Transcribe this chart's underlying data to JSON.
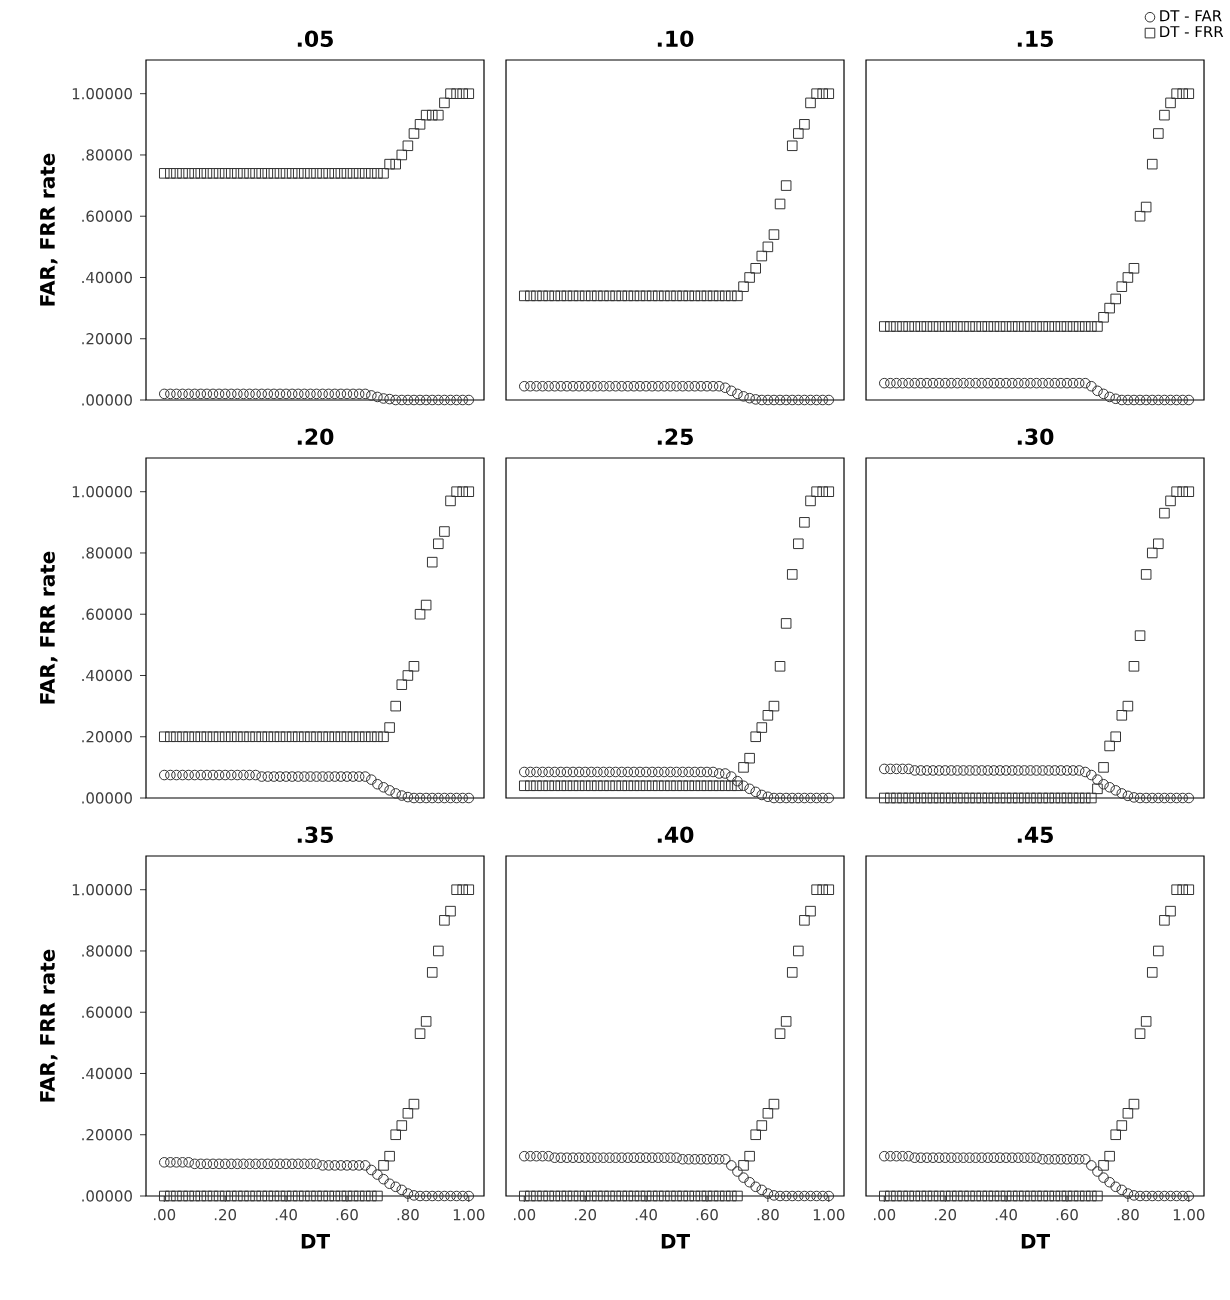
{
  "chart_data": [
    {
      "type": "scatter",
      "title": ".05",
      "ylabel": "FAR, FRR rate",
      "tick_labels": "y",
      "xlim": [
        -0.06,
        1.05
      ],
      "ylim": [
        0,
        1.11
      ],
      "xticks": [
        {
          "value": 0,
          "label": null
        },
        {
          "value": 0.2,
          "label": null
        },
        {
          "value": 0.4,
          "label": null
        },
        {
          "value": 0.6,
          "label": null
        },
        {
          "value": 0.8,
          "label": null
        },
        {
          "value": 1,
          "label": null
        }
      ],
      "yticks": [
        {
          "value": 0,
          "label": ".00000"
        },
        {
          "value": 0.2,
          "label": ".20000"
        },
        {
          "value": 0.4,
          "label": ".40000"
        },
        {
          "value": 0.6,
          "label": ".60000"
        },
        {
          "value": 0.8,
          "label": ".80000"
        },
        {
          "value": 1,
          "label": "1.00000"
        }
      ],
      "x": [
        0,
        0.02,
        0.04,
        0.06,
        0.08,
        0.1,
        0.12,
        0.14,
        0.16,
        0.18,
        0.2,
        0.22,
        0.24,
        0.26,
        0.28,
        0.3,
        0.32,
        0.34,
        0.36,
        0.38,
        0.4,
        0.42,
        0.44,
        0.46,
        0.48,
        0.5,
        0.52,
        0.54,
        0.56,
        0.58,
        0.6,
        0.62,
        0.64,
        0.66,
        0.68,
        0.7,
        0.72,
        0.74,
        0.76,
        0.78,
        0.8,
        0.82,
        0.84,
        0.86,
        0.88,
        0.9,
        0.92,
        0.94,
        0.96,
        0.98,
        1
      ],
      "series": [
        {
          "color": "#333333",
          "marker": "circle",
          "values": [
            0.02,
            0.02,
            0.02,
            0.02,
            0.02,
            0.02,
            0.02,
            0.02,
            0.02,
            0.02,
            0.02,
            0.02,
            0.02,
            0.02,
            0.02,
            0.02,
            0.02,
            0.02,
            0.02,
            0.02,
            0.02,
            0.02,
            0.02,
            0.02,
            0.02,
            0.02,
            0.02,
            0.02,
            0.02,
            0.02,
            0.02,
            0.02,
            0.02,
            0.02,
            0.015,
            0.01,
            0.005,
            0.003,
            0,
            0,
            0,
            0,
            0,
            0,
            0,
            0,
            0,
            0,
            0,
            0,
            0
          ]
        },
        {
          "color": "#333333",
          "marker": "square",
          "values": [
            0.74,
            0.74,
            0.74,
            0.74,
            0.74,
            0.74,
            0.74,
            0.74,
            0.74,
            0.74,
            0.74,
            0.74,
            0.74,
            0.74,
            0.74,
            0.74,
            0.74,
            0.74,
            0.74,
            0.74,
            0.74,
            0.74,
            0.74,
            0.74,
            0.74,
            0.74,
            0.74,
            0.74,
            0.74,
            0.74,
            0.74,
            0.74,
            0.74,
            0.74,
            0.74,
            0.74,
            0.74,
            0.77,
            0.77,
            0.8,
            0.83,
            0.87,
            0.9,
            0.93,
            0.93,
            0.93,
            0.97,
            1,
            1,
            1,
            1
          ]
        }
      ]
    },
    {
      "type": "scatter",
      "title": ".10",
      "tick_labels": false,
      "xlim": [
        -0.06,
        1.05
      ],
      "ylim": [
        0,
        1.11
      ],
      "xticks": [
        {
          "value": 0,
          "label": null
        },
        {
          "value": 0.2,
          "label": null
        },
        {
          "value": 0.4,
          "label": null
        },
        {
          "value": 0.6,
          "label": null
        },
        {
          "value": 0.8,
          "label": null
        },
        {
          "value": 1,
          "label": null
        }
      ],
      "yticks": [
        {
          "value": 0,
          "label": null
        },
        {
          "value": 0.2,
          "label": null
        },
        {
          "value": 0.4,
          "label": null
        },
        {
          "value": 0.6,
          "label": null
        },
        {
          "value": 0.8,
          "label": null
        },
        {
          "value": 1,
          "label": null
        }
      ],
      "x": [
        0,
        0.02,
        0.04,
        0.06,
        0.08,
        0.1,
        0.12,
        0.14,
        0.16,
        0.18,
        0.2,
        0.22,
        0.24,
        0.26,
        0.28,
        0.3,
        0.32,
        0.34,
        0.36,
        0.38,
        0.4,
        0.42,
        0.44,
        0.46,
        0.48,
        0.5,
        0.52,
        0.54,
        0.56,
        0.58,
        0.6,
        0.62,
        0.64,
        0.66,
        0.68,
        0.7,
        0.72,
        0.74,
        0.76,
        0.78,
        0.8,
        0.82,
        0.84,
        0.86,
        0.88,
        0.9,
        0.92,
        0.94,
        0.96,
        0.98,
        1
      ],
      "series": [
        {
          "color": "#333333",
          "marker": "circle",
          "values": [
            0.045,
            0.045,
            0.045,
            0.045,
            0.045,
            0.045,
            0.045,
            0.045,
            0.045,
            0.045,
            0.045,
            0.045,
            0.045,
            0.045,
            0.045,
            0.045,
            0.045,
            0.045,
            0.045,
            0.045,
            0.045,
            0.045,
            0.045,
            0.045,
            0.045,
            0.045,
            0.045,
            0.045,
            0.045,
            0.045,
            0.045,
            0.045,
            0.045,
            0.04,
            0.03,
            0.02,
            0.012,
            0.006,
            0.002,
            0,
            0,
            0,
            0,
            0,
            0,
            0,
            0,
            0,
            0,
            0,
            0
          ]
        },
        {
          "color": "#333333",
          "marker": "square",
          "values": [
            0.34,
            0.34,
            0.34,
            0.34,
            0.34,
            0.34,
            0.34,
            0.34,
            0.34,
            0.34,
            0.34,
            0.34,
            0.34,
            0.34,
            0.34,
            0.34,
            0.34,
            0.34,
            0.34,
            0.34,
            0.34,
            0.34,
            0.34,
            0.34,
            0.34,
            0.34,
            0.34,
            0.34,
            0.34,
            0.34,
            0.34,
            0.34,
            0.34,
            0.34,
            0.34,
            0.34,
            0.37,
            0.4,
            0.43,
            0.47,
            0.5,
            0.54,
            0.64,
            0.7,
            0.83,
            0.87,
            0.9,
            0.97,
            1,
            1,
            1
          ]
        }
      ]
    },
    {
      "type": "scatter",
      "title": ".15",
      "tick_labels": false,
      "legend": "top right",
      "xlim": [
        -0.06,
        1.05
      ],
      "ylim": [
        0,
        1.11
      ],
      "xticks": [
        {
          "value": 0,
          "label": null
        },
        {
          "value": 0.2,
          "label": null
        },
        {
          "value": 0.4,
          "label": null
        },
        {
          "value": 0.6,
          "label": null
        },
        {
          "value": 0.8,
          "label": null
        },
        {
          "value": 1,
          "label": null
        }
      ],
      "yticks": [
        {
          "value": 0,
          "label": null
        },
        {
          "value": 0.2,
          "label": null
        },
        {
          "value": 0.4,
          "label": null
        },
        {
          "value": 0.6,
          "label": null
        },
        {
          "value": 0.8,
          "label": null
        },
        {
          "value": 1,
          "label": null
        }
      ],
      "x": [
        0,
        0.02,
        0.04,
        0.06,
        0.08,
        0.1,
        0.12,
        0.14,
        0.16,
        0.18,
        0.2,
        0.22,
        0.24,
        0.26,
        0.28,
        0.3,
        0.32,
        0.34,
        0.36,
        0.38,
        0.4,
        0.42,
        0.44,
        0.46,
        0.48,
        0.5,
        0.52,
        0.54,
        0.56,
        0.58,
        0.6,
        0.62,
        0.64,
        0.66,
        0.68,
        0.7,
        0.72,
        0.74,
        0.76,
        0.78,
        0.8,
        0.82,
        0.84,
        0.86,
        0.88,
        0.9,
        0.92,
        0.94,
        0.96,
        0.98,
        1
      ],
      "series": [
        {
          "name": "DT - FAR",
          "color": "#333333",
          "marker": "circle",
          "values": [
            0.055,
            0.055,
            0.055,
            0.055,
            0.055,
            0.055,
            0.055,
            0.055,
            0.055,
            0.055,
            0.055,
            0.055,
            0.055,
            0.055,
            0.055,
            0.055,
            0.055,
            0.055,
            0.055,
            0.055,
            0.055,
            0.055,
            0.055,
            0.055,
            0.055,
            0.055,
            0.055,
            0.055,
            0.055,
            0.055,
            0.055,
            0.055,
            0.055,
            0.055,
            0.045,
            0.03,
            0.02,
            0.01,
            0.004,
            0,
            0,
            0,
            0,
            0,
            0,
            0,
            0,
            0,
            0,
            0,
            0
          ]
        },
        {
          "name": "DT - FRR",
          "color": "#333333",
          "marker": "square",
          "values": [
            0.24,
            0.24,
            0.24,
            0.24,
            0.24,
            0.24,
            0.24,
            0.24,
            0.24,
            0.24,
            0.24,
            0.24,
            0.24,
            0.24,
            0.24,
            0.24,
            0.24,
            0.24,
            0.24,
            0.24,
            0.24,
            0.24,
            0.24,
            0.24,
            0.24,
            0.24,
            0.24,
            0.24,
            0.24,
            0.24,
            0.24,
            0.24,
            0.24,
            0.24,
            0.24,
            0.24,
            0.27,
            0.3,
            0.33,
            0.37,
            0.4,
            0.43,
            0.6,
            0.63,
            0.77,
            0.87,
            0.93,
            0.97,
            1,
            1,
            1
          ]
        }
      ]
    },
    {
      "type": "scatter",
      "title": ".20",
      "ylabel": "FAR, FRR rate",
      "tick_labels": "y",
      "xlim": [
        -0.06,
        1.05
      ],
      "ylim": [
        0,
        1.11
      ],
      "xticks": [
        {
          "value": 0,
          "label": null
        },
        {
          "value": 0.2,
          "label": null
        },
        {
          "value": 0.4,
          "label": null
        },
        {
          "value": 0.6,
          "label": null
        },
        {
          "value": 0.8,
          "label": null
        },
        {
          "value": 1,
          "label": null
        }
      ],
      "yticks": [
        {
          "value": 0,
          "label": ".00000"
        },
        {
          "value": 0.2,
          "label": ".20000"
        },
        {
          "value": 0.4,
          "label": ".40000"
        },
        {
          "value": 0.6,
          "label": ".60000"
        },
        {
          "value": 0.8,
          "label": ".80000"
        },
        {
          "value": 1,
          "label": "1.00000"
        }
      ],
      "x": [
        0,
        0.02,
        0.04,
        0.06,
        0.08,
        0.1,
        0.12,
        0.14,
        0.16,
        0.18,
        0.2,
        0.22,
        0.24,
        0.26,
        0.28,
        0.3,
        0.32,
        0.34,
        0.36,
        0.38,
        0.4,
        0.42,
        0.44,
        0.46,
        0.48,
        0.5,
        0.52,
        0.54,
        0.56,
        0.58,
        0.6,
        0.62,
        0.64,
        0.66,
        0.68,
        0.7,
        0.72,
        0.74,
        0.76,
        0.78,
        0.8,
        0.82,
        0.84,
        0.86,
        0.88,
        0.9,
        0.92,
        0.94,
        0.96,
        0.98,
        1
      ],
      "series": [
        {
          "color": "#333333",
          "marker": "circle",
          "values": [
            0.075,
            0.075,
            0.075,
            0.075,
            0.075,
            0.075,
            0.075,
            0.075,
            0.075,
            0.075,
            0.075,
            0.075,
            0.075,
            0.075,
            0.075,
            0.075,
            0.07,
            0.07,
            0.07,
            0.07,
            0.07,
            0.07,
            0.07,
            0.07,
            0.07,
            0.07,
            0.07,
            0.07,
            0.07,
            0.07,
            0.07,
            0.07,
            0.07,
            0.07,
            0.06,
            0.045,
            0.035,
            0.025,
            0.015,
            0.008,
            0.003,
            0,
            0,
            0,
            0,
            0,
            0,
            0,
            0,
            0,
            0
          ]
        },
        {
          "color": "#333333",
          "marker": "square",
          "values": [
            0.2,
            0.2,
            0.2,
            0.2,
            0.2,
            0.2,
            0.2,
            0.2,
            0.2,
            0.2,
            0.2,
            0.2,
            0.2,
            0.2,
            0.2,
            0.2,
            0.2,
            0.2,
            0.2,
            0.2,
            0.2,
            0.2,
            0.2,
            0.2,
            0.2,
            0.2,
            0.2,
            0.2,
            0.2,
            0.2,
            0.2,
            0.2,
            0.2,
            0.2,
            0.2,
            0.2,
            0.2,
            0.23,
            0.3,
            0.37,
            0.4,
            0.43,
            0.6,
            0.63,
            0.77,
            0.83,
            0.87,
            0.97,
            1,
            1,
            1
          ]
        }
      ]
    },
    {
      "type": "scatter",
      "title": ".25",
      "tick_labels": false,
      "xlim": [
        -0.06,
        1.05
      ],
      "ylim": [
        0,
        1.11
      ],
      "xticks": [
        {
          "value": 0,
          "label": null
        },
        {
          "value": 0.2,
          "label": null
        },
        {
          "value": 0.4,
          "label": null
        },
        {
          "value": 0.6,
          "label": null
        },
        {
          "value": 0.8,
          "label": null
        },
        {
          "value": 1,
          "label": null
        }
      ],
      "yticks": [
        {
          "value": 0,
          "label": null
        },
        {
          "value": 0.2,
          "label": null
        },
        {
          "value": 0.4,
          "label": null
        },
        {
          "value": 0.6,
          "label": null
        },
        {
          "value": 0.8,
          "label": null
        },
        {
          "value": 1,
          "label": null
        }
      ],
      "x": [
        0,
        0.02,
        0.04,
        0.06,
        0.08,
        0.1,
        0.12,
        0.14,
        0.16,
        0.18,
        0.2,
        0.22,
        0.24,
        0.26,
        0.28,
        0.3,
        0.32,
        0.34,
        0.36,
        0.38,
        0.4,
        0.42,
        0.44,
        0.46,
        0.48,
        0.5,
        0.52,
        0.54,
        0.56,
        0.58,
        0.6,
        0.62,
        0.64,
        0.66,
        0.68,
        0.7,
        0.72,
        0.74,
        0.76,
        0.78,
        0.8,
        0.82,
        0.84,
        0.86,
        0.88,
        0.9,
        0.92,
        0.94,
        0.96,
        0.98,
        1
      ],
      "series": [
        {
          "color": "#333333",
          "marker": "circle",
          "values": [
            0.085,
            0.085,
            0.085,
            0.085,
            0.085,
            0.085,
            0.085,
            0.085,
            0.085,
            0.085,
            0.085,
            0.085,
            0.085,
            0.085,
            0.085,
            0.085,
            0.085,
            0.085,
            0.085,
            0.085,
            0.085,
            0.085,
            0.085,
            0.085,
            0.085,
            0.085,
            0.085,
            0.085,
            0.085,
            0.085,
            0.085,
            0.085,
            0.08,
            0.08,
            0.07,
            0.055,
            0.04,
            0.03,
            0.02,
            0.01,
            0.004,
            0,
            0,
            0,
            0,
            0,
            0,
            0,
            0,
            0,
            0
          ]
        },
        {
          "color": "#333333",
          "marker": "square",
          "values": [
            0.04,
            0.04,
            0.04,
            0.04,
            0.04,
            0.04,
            0.04,
            0.04,
            0.04,
            0.04,
            0.04,
            0.04,
            0.04,
            0.04,
            0.04,
            0.04,
            0.04,
            0.04,
            0.04,
            0.04,
            0.04,
            0.04,
            0.04,
            0.04,
            0.04,
            0.04,
            0.04,
            0.04,
            0.04,
            0.04,
            0.04,
            0.04,
            0.04,
            0.04,
            0.04,
            0.04,
            0.1,
            0.13,
            0.2,
            0.23,
            0.27,
            0.3,
            0.43,
            0.57,
            0.73,
            0.83,
            0.9,
            0.97,
            1,
            1,
            1
          ]
        }
      ]
    },
    {
      "type": "scatter",
      "title": ".30",
      "tick_labels": false,
      "xlim": [
        -0.06,
        1.05
      ],
      "ylim": [
        0,
        1.11
      ],
      "xticks": [
        {
          "value": 0,
          "label": null
        },
        {
          "value": 0.2,
          "label": null
        },
        {
          "value": 0.4,
          "label": null
        },
        {
          "value": 0.6,
          "label": null
        },
        {
          "value": 0.8,
          "label": null
        },
        {
          "value": 1,
          "label": null
        }
      ],
      "yticks": [
        {
          "value": 0,
          "label": null
        },
        {
          "value": 0.2,
          "label": null
        },
        {
          "value": 0.4,
          "label": null
        },
        {
          "value": 0.6,
          "label": null
        },
        {
          "value": 0.8,
          "label": null
        },
        {
          "value": 1,
          "label": null
        }
      ],
      "x": [
        0,
        0.02,
        0.04,
        0.06,
        0.08,
        0.1,
        0.12,
        0.14,
        0.16,
        0.18,
        0.2,
        0.22,
        0.24,
        0.26,
        0.28,
        0.3,
        0.32,
        0.34,
        0.36,
        0.38,
        0.4,
        0.42,
        0.44,
        0.46,
        0.48,
        0.5,
        0.52,
        0.54,
        0.56,
        0.58,
        0.6,
        0.62,
        0.64,
        0.66,
        0.68,
        0.7,
        0.72,
        0.74,
        0.76,
        0.78,
        0.8,
        0.82,
        0.84,
        0.86,
        0.88,
        0.9,
        0.92,
        0.94,
        0.96,
        0.98,
        1
      ],
      "series": [
        {
          "color": "#333333",
          "marker": "circle",
          "values": [
            0.095,
            0.095,
            0.095,
            0.095,
            0.095,
            0.09,
            0.09,
            0.09,
            0.09,
            0.09,
            0.09,
            0.09,
            0.09,
            0.09,
            0.09,
            0.09,
            0.09,
            0.09,
            0.09,
            0.09,
            0.09,
            0.09,
            0.09,
            0.09,
            0.09,
            0.09,
            0.09,
            0.09,
            0.09,
            0.09,
            0.09,
            0.09,
            0.09,
            0.085,
            0.075,
            0.06,
            0.045,
            0.035,
            0.025,
            0.015,
            0.007,
            0.002,
            0,
            0,
            0,
            0,
            0,
            0,
            0,
            0,
            0
          ]
        },
        {
          "color": "#333333",
          "marker": "square",
          "values": [
            0,
            0,
            0,
            0,
            0,
            0,
            0,
            0,
            0,
            0,
            0,
            0,
            0,
            0,
            0,
            0,
            0,
            0,
            0,
            0,
            0,
            0,
            0,
            0,
            0,
            0,
            0,
            0,
            0,
            0,
            0,
            0,
            0,
            0,
            0,
            0.03,
            0.1,
            0.17,
            0.2,
            0.27,
            0.3,
            0.43,
            0.53,
            0.73,
            0.8,
            0.83,
            0.93,
            0.97,
            1,
            1,
            1
          ]
        }
      ]
    },
    {
      "type": "scatter",
      "title": ".35",
      "xlabel": "DT",
      "ylabel": "FAR, FRR rate",
      "xlim": [
        -0.06,
        1.05
      ],
      "ylim": [
        0,
        1.11
      ],
      "xticks": [
        {
          "value": 0,
          "label": ".00"
        },
        {
          "value": 0.2,
          "label": ".20"
        },
        {
          "value": 0.4,
          "label": ".40"
        },
        {
          "value": 0.6,
          "label": ".60"
        },
        {
          "value": 0.8,
          "label": ".80"
        },
        {
          "value": 1,
          "label": "1.00"
        }
      ],
      "yticks": [
        {
          "value": 0,
          "label": ".00000"
        },
        {
          "value": 0.2,
          "label": ".20000"
        },
        {
          "value": 0.4,
          "label": ".40000"
        },
        {
          "value": 0.6,
          "label": ".60000"
        },
        {
          "value": 0.8,
          "label": ".80000"
        },
        {
          "value": 1,
          "label": "1.00000"
        }
      ],
      "x": [
        0,
        0.02,
        0.04,
        0.06,
        0.08,
        0.1,
        0.12,
        0.14,
        0.16,
        0.18,
        0.2,
        0.22,
        0.24,
        0.26,
        0.28,
        0.3,
        0.32,
        0.34,
        0.36,
        0.38,
        0.4,
        0.42,
        0.44,
        0.46,
        0.48,
        0.5,
        0.52,
        0.54,
        0.56,
        0.58,
        0.6,
        0.62,
        0.64,
        0.66,
        0.68,
        0.7,
        0.72,
        0.74,
        0.76,
        0.78,
        0.8,
        0.82,
        0.84,
        0.86,
        0.88,
        0.9,
        0.92,
        0.94,
        0.96,
        0.98,
        1
      ],
      "series": [
        {
          "color": "#333333",
          "marker": "circle",
          "values": [
            0.11,
            0.11,
            0.11,
            0.11,
            0.11,
            0.105,
            0.105,
            0.105,
            0.105,
            0.105,
            0.105,
            0.105,
            0.105,
            0.105,
            0.105,
            0.105,
            0.105,
            0.105,
            0.105,
            0.105,
            0.105,
            0.105,
            0.105,
            0.105,
            0.105,
            0.105,
            0.1,
            0.1,
            0.1,
            0.1,
            0.1,
            0.1,
            0.1,
            0.1,
            0.085,
            0.07,
            0.055,
            0.04,
            0.03,
            0.02,
            0.008,
            0.002,
            0,
            0,
            0,
            0,
            0,
            0,
            0,
            0,
            0
          ]
        },
        {
          "color": "#333333",
          "marker": "square",
          "values": [
            0,
            0,
            0,
            0,
            0,
            0,
            0,
            0,
            0,
            0,
            0,
            0,
            0,
            0,
            0,
            0,
            0,
            0,
            0,
            0,
            0,
            0,
            0,
            0,
            0,
            0,
            0,
            0,
            0,
            0,
            0,
            0,
            0,
            0,
            0,
            0,
            0.1,
            0.13,
            0.2,
            0.23,
            0.27,
            0.3,
            0.53,
            0.57,
            0.73,
            0.8,
            0.9,
            0.93,
            1,
            1,
            1
          ]
        }
      ]
    },
    {
      "type": "scatter",
      "title": ".40",
      "xlabel": "DT",
      "tick_labels": "x",
      "xlim": [
        -0.06,
        1.05
      ],
      "ylim": [
        0,
        1.11
      ],
      "xticks": [
        {
          "value": 0,
          "label": ".00"
        },
        {
          "value": 0.2,
          "label": ".20"
        },
        {
          "value": 0.4,
          "label": ".40"
        },
        {
          "value": 0.6,
          "label": ".60"
        },
        {
          "value": 0.8,
          "label": ".80"
        },
        {
          "value": 1,
          "label": "1.00"
        }
      ],
      "yticks": [
        {
          "value": 0,
          "label": null
        },
        {
          "value": 0.2,
          "label": null
        },
        {
          "value": 0.4,
          "label": null
        },
        {
          "value": 0.6,
          "label": null
        },
        {
          "value": 0.8,
          "label": null
        },
        {
          "value": 1,
          "label": null
        }
      ],
      "x": [
        0,
        0.02,
        0.04,
        0.06,
        0.08,
        0.1,
        0.12,
        0.14,
        0.16,
        0.18,
        0.2,
        0.22,
        0.24,
        0.26,
        0.28,
        0.3,
        0.32,
        0.34,
        0.36,
        0.38,
        0.4,
        0.42,
        0.44,
        0.46,
        0.48,
        0.5,
        0.52,
        0.54,
        0.56,
        0.58,
        0.6,
        0.62,
        0.64,
        0.66,
        0.68,
        0.7,
        0.72,
        0.74,
        0.76,
        0.78,
        0.8,
        0.82,
        0.84,
        0.86,
        0.88,
        0.9,
        0.92,
        0.94,
        0.96,
        0.98,
        1
      ],
      "series": [
        {
          "color": "#333333",
          "marker": "circle",
          "values": [
            0.13,
            0.13,
            0.13,
            0.13,
            0.13,
            0.125,
            0.125,
            0.125,
            0.125,
            0.125,
            0.125,
            0.125,
            0.125,
            0.125,
            0.125,
            0.125,
            0.125,
            0.125,
            0.125,
            0.125,
            0.125,
            0.125,
            0.125,
            0.125,
            0.125,
            0.125,
            0.12,
            0.12,
            0.12,
            0.12,
            0.12,
            0.12,
            0.12,
            0.12,
            0.1,
            0.08,
            0.06,
            0.045,
            0.03,
            0.02,
            0.008,
            0.002,
            0,
            0,
            0,
            0,
            0,
            0,
            0,
            0,
            0
          ]
        },
        {
          "color": "#333333",
          "marker": "square",
          "values": [
            0,
            0,
            0,
            0,
            0,
            0,
            0,
            0,
            0,
            0,
            0,
            0,
            0,
            0,
            0,
            0,
            0,
            0,
            0,
            0,
            0,
            0,
            0,
            0,
            0,
            0,
            0,
            0,
            0,
            0,
            0,
            0,
            0,
            0,
            0,
            0,
            0.1,
            0.13,
            0.2,
            0.23,
            0.27,
            0.3,
            0.53,
            0.57,
            0.73,
            0.8,
            0.9,
            0.93,
            1,
            1,
            1
          ]
        }
      ]
    },
    {
      "type": "scatter",
      "title": ".45",
      "xlabel": "DT",
      "tick_labels": "x",
      "xlim": [
        -0.06,
        1.05
      ],
      "ylim": [
        0,
        1.11
      ],
      "xticks": [
        {
          "value": 0,
          "label": ".00"
        },
        {
          "value": 0.2,
          "label": ".20"
        },
        {
          "value": 0.4,
          "label": ".40"
        },
        {
          "value": 0.6,
          "label": ".60"
        },
        {
          "value": 0.8,
          "label": ".80"
        },
        {
          "value": 1,
          "label": "1.00"
        }
      ],
      "yticks": [
        {
          "value": 0,
          "label": null
        },
        {
          "value": 0.2,
          "label": null
        },
        {
          "value": 0.4,
          "label": null
        },
        {
          "value": 0.6,
          "label": null
        },
        {
          "value": 0.8,
          "label": null
        },
        {
          "value": 1,
          "label": null
        }
      ],
      "x": [
        0,
        0.02,
        0.04,
        0.06,
        0.08,
        0.1,
        0.12,
        0.14,
        0.16,
        0.18,
        0.2,
        0.22,
        0.24,
        0.26,
        0.28,
        0.3,
        0.32,
        0.34,
        0.36,
        0.38,
        0.4,
        0.42,
        0.44,
        0.46,
        0.48,
        0.5,
        0.52,
        0.54,
        0.56,
        0.58,
        0.6,
        0.62,
        0.64,
        0.66,
        0.68,
        0.7,
        0.72,
        0.74,
        0.76,
        0.78,
        0.8,
        0.82,
        0.84,
        0.86,
        0.88,
        0.9,
        0.92,
        0.94,
        0.96,
        0.98,
        1
      ],
      "series": [
        {
          "color": "#333333",
          "marker": "circle",
          "values": [
            0.13,
            0.13,
            0.13,
            0.13,
            0.13,
            0.125,
            0.125,
            0.125,
            0.125,
            0.125,
            0.125,
            0.125,
            0.125,
            0.125,
            0.125,
            0.125,
            0.125,
            0.125,
            0.125,
            0.125,
            0.125,
            0.125,
            0.125,
            0.125,
            0.125,
            0.125,
            0.12,
            0.12,
            0.12,
            0.12,
            0.12,
            0.12,
            0.12,
            0.12,
            0.1,
            0.08,
            0.06,
            0.045,
            0.03,
            0.02,
            0.008,
            0.002,
            0,
            0,
            0,
            0,
            0,
            0,
            0,
            0,
            0
          ]
        },
        {
          "color": "#333333",
          "marker": "square",
          "values": [
            0,
            0,
            0,
            0,
            0,
            0,
            0,
            0,
            0,
            0,
            0,
            0,
            0,
            0,
            0,
            0,
            0,
            0,
            0,
            0,
            0,
            0,
            0,
            0,
            0,
            0,
            0,
            0,
            0,
            0,
            0,
            0,
            0,
            0,
            0,
            0,
            0.1,
            0.13,
            0.2,
            0.23,
            0.27,
            0.3,
            0.53,
            0.57,
            0.73,
            0.8,
            0.9,
            0.93,
            1,
            1,
            1
          ]
        }
      ]
    }
  ]
}
